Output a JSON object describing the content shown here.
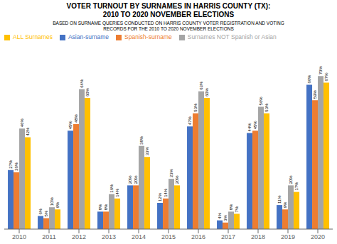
{
  "chart_data": {
    "type": "bar",
    "title": "VOTER TURNOUT BY SURNAMES IN HARRIS COUNTY (TX):\n2010 TO 2020 NOVEMBER ELECTIONS",
    "subtitle": "BASED ON SURNAME QUERIES CONDUCTED ON HARRIS COUNTY VOTER REGISTRATION AND VOTING\nRECORDS FOR THE 2010 TO 2020 NOVEMBER ELECTIONS",
    "categories": [
      "2010",
      "2011",
      "2012",
      "2013",
      "2014",
      "2015",
      "2016",
      "2017",
      "2018",
      "2019",
      "2020"
    ],
    "series": [
      {
        "name": "Asian-surname",
        "color": "#4472C4",
        "values": [
          27,
          6,
          45,
          8,
          20,
          12,
          47,
          4,
          44,
          11,
          66
        ],
        "value_labels": [
          "27%",
          "6%",
          "45%",
          "8%",
          "20%",
          "12%",
          "47%",
          "4%",
          "44%",
          "11%",
          "66%"
        ]
      },
      {
        "name": "Spanish-surname",
        "color": "#ED7D31",
        "values": [
          26,
          5,
          48,
          8,
          20,
          14,
          53,
          3,
          45,
          9,
          59
        ],
        "value_labels": [
          "26%",
          "5%",
          "48%",
          "8%",
          "20%",
          "14%",
          "53%",
          "3%",
          "45%",
          "9%",
          "59%"
        ]
      },
      {
        "name": "Surnames NOT Spanish or Asian",
        "color": "#A5A5A5",
        "values": [
          46,
          10,
          64,
          16,
          38,
          23,
          63,
          8,
          56,
          20,
          70
        ],
        "value_labels": [
          "46%",
          "10%",
          "64%",
          "16%",
          "38%",
          "23%",
          "63%",
          "8%",
          "56%",
          "20%",
          "70%"
        ]
      },
      {
        "name": "ALL Surnames",
        "color": "#FFC000",
        "values": [
          42,
          9,
          60,
          14,
          33,
          20,
          60,
          7,
          53,
          17,
          67
        ],
        "value_labels": [
          "42%",
          "9%",
          "60%",
          "14%",
          "33%",
          "20%",
          "60%",
          "7%",
          "53%",
          "17%",
          "67%"
        ]
      }
    ],
    "ylim": [
      0,
      85
    ],
    "data_labels": true,
    "tick_labels": "x",
    "legend": "upper left"
  }
}
